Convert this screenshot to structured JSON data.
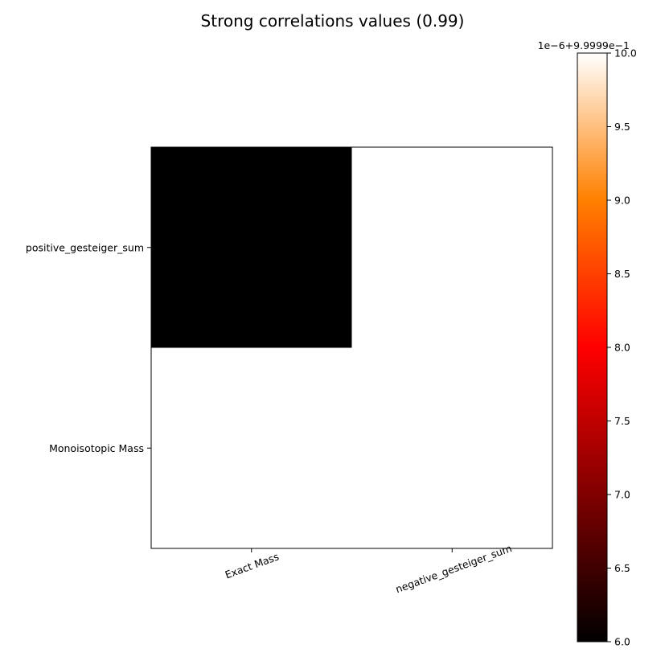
{
  "chart_data": {
    "type": "heatmap",
    "title": "Strong correlations values (0.99)",
    "x_categories": [
      "Exact Mass",
      "negative_gesteiger_sum"
    ],
    "y_categories": [
      "positive_gesteiger_sum",
      "Monoisotopic Mass"
    ],
    "values": [
      [
        0.999996,
        1.0
      ],
      [
        1.0,
        1.0
      ]
    ],
    "x_tick_rotation_deg": -20,
    "colormap": "gist_heat",
    "colorbar": {
      "range": [
        6.0,
        10.0
      ],
      "ticks": [
        "6.0",
        "6.5",
        "7.0",
        "7.5",
        "8.0",
        "8.5",
        "9.0",
        "9.5",
        "10.0"
      ],
      "offset_label": "1e−6+9.9999e−1",
      "gradient_stops": [
        "#000000",
        "#400000",
        "#800000",
        "#c00000",
        "#ff0000",
        "#ff4000",
        "#ff8000",
        "#ffbf7f",
        "#ffffff"
      ]
    },
    "grid": false,
    "legend": "none"
  }
}
